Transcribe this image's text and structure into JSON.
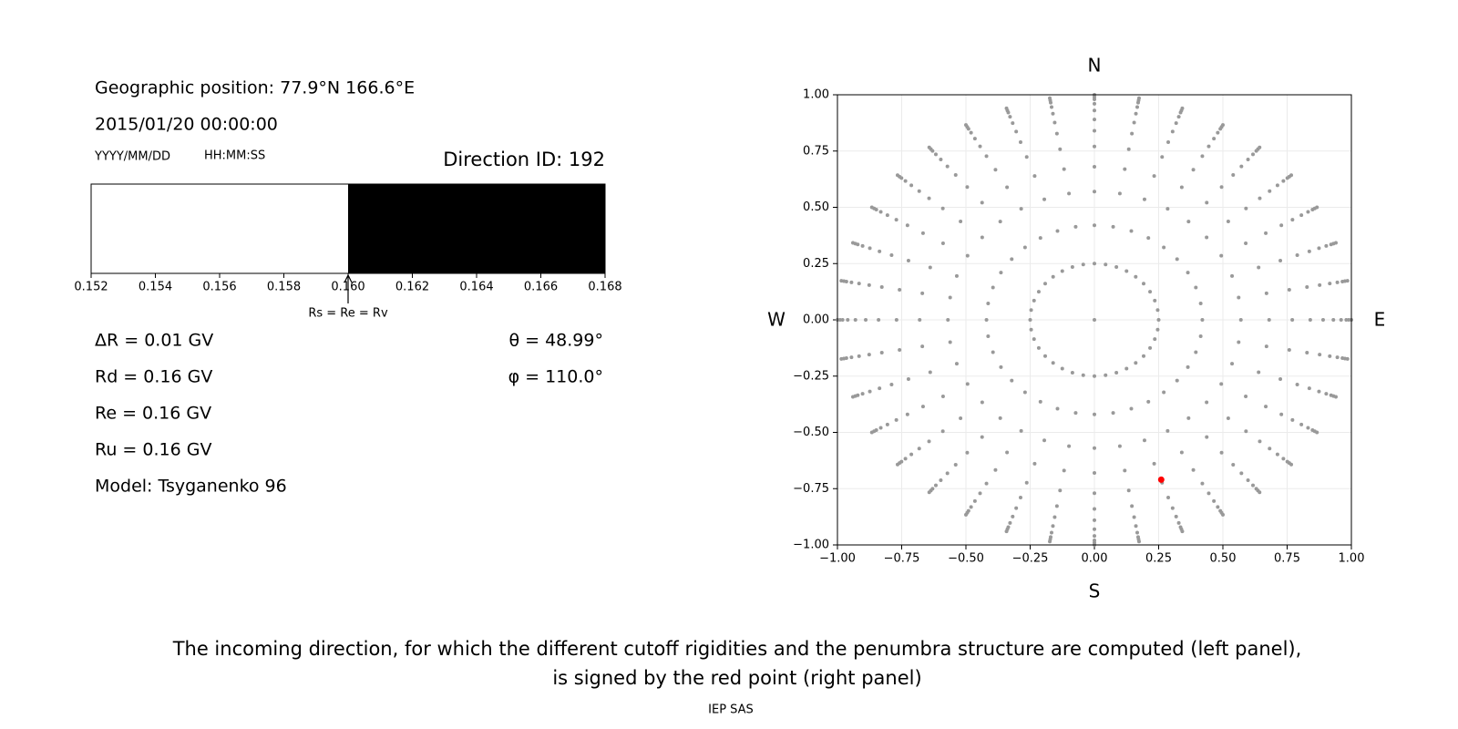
{
  "left_panel": {
    "position": "Geographic position: 77.9°N 166.6°E",
    "datetime": "2015/01/20 00:00:00",
    "date_format": "YYYY/MM/DD",
    "time_format": "HH:MM:SS",
    "direction_id": "Direction ID: 192",
    "info": [
      "ΔR = 0.01 GV",
      "Rd = 0.16 GV",
      "Re = 0.16 GV",
      "Ru = 0.16 GV",
      "Model: Tsyganenko 96"
    ],
    "angles": [
      "θ = 48.99°",
      "φ = 110.0°"
    ]
  },
  "chart_data": [
    {
      "type": "penumbra",
      "xlim": [
        0.152,
        0.168
      ],
      "xticks": [
        0.152,
        0.154,
        0.156,
        0.158,
        {
          "value": 0.16,
          "label": "0.160"
        },
        0.162,
        0.164,
        0.166,
        0.168
      ],
      "segments": [
        {
          "from": 0.152,
          "to": 0.16,
          "color": "#ffffff"
        },
        {
          "from": 0.16,
          "to": 0.168,
          "color": "#000000"
        }
      ],
      "marker": {
        "value": 0.16,
        "label": "Rs = Re = Rv"
      }
    },
    {
      "type": "scatter",
      "xlim": [
        -1,
        1
      ],
      "ylim": [
        -1,
        1
      ],
      "xticks": [
        {
          "value": -1,
          "label": "−1.00"
        },
        {
          "value": -0.75,
          "label": "−0.75"
        },
        {
          "value": -0.5,
          "label": "−0.50"
        },
        {
          "value": -0.25,
          "label": "−0.25"
        },
        {
          "value": 0,
          "label": "0.00"
        },
        0.25,
        {
          "value": 0.5,
          "label": "0.50"
        },
        0.75,
        {
          "value": 1,
          "label": "1.00"
        }
      ],
      "yticks": [
        {
          "value": -1,
          "label": "−1.00"
        },
        {
          "value": -0.75,
          "label": "−0.75"
        },
        {
          "value": -0.5,
          "label": "−0.50"
        },
        {
          "value": -0.25,
          "label": "−0.25"
        },
        {
          "value": 0,
          "label": "0.00"
        },
        0.25,
        {
          "value": 0.5,
          "label": "0.50"
        },
        0.75,
        {
          "value": 1,
          "label": "1.00"
        }
      ],
      "grid": true,
      "color": "#999999",
      "grid_points": {
        "azimuth_deg": [
          0,
          10,
          20,
          30,
          40,
          50,
          60,
          70,
          80,
          90,
          100,
          110,
          120,
          130,
          140,
          150,
          160,
          170,
          180,
          190,
          200,
          210,
          220,
          230,
          240,
          250,
          260,
          270,
          280,
          290,
          300,
          310,
          320,
          330,
          340,
          350
        ],
        "radius": [
          0.25,
          0.42,
          0.57,
          0.68,
          0.77,
          0.84,
          0.89,
          0.93,
          0.96,
          0.98,
          0.99,
          1.0
        ]
      },
      "center": {
        "x": 0,
        "y": 0
      },
      "selected": {
        "x": 0.26,
        "y": -0.71,
        "color": "#ff0000"
      },
      "compass": {
        "top": "N",
        "bottom": "S",
        "left": "W",
        "right": "E"
      }
    }
  ],
  "caption": [
    "The incoming direction, for which the different cutoff rigidities and the penumbra structure are computed (left panel),",
    "is signed by the red point (right panel)"
  ],
  "footer": "IEP SAS"
}
